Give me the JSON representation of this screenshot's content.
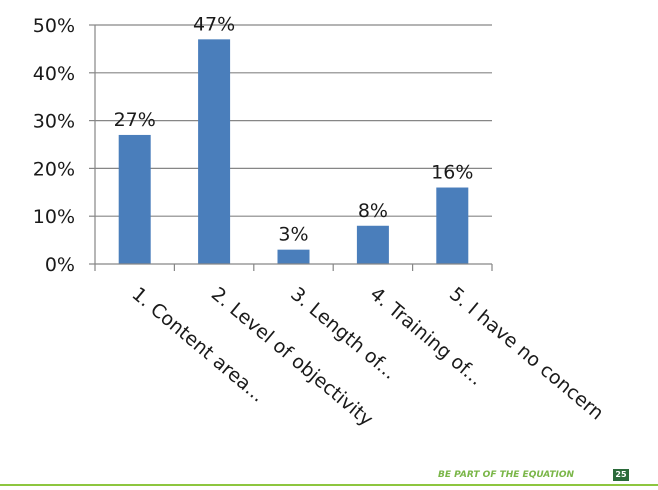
{
  "chart_data": {
    "type": "bar",
    "categories": [
      "1. Content area...",
      "2. Level of objectivity",
      "3. Length of...",
      "4. Training of...",
      "5. I have no concern"
    ],
    "values": [
      27,
      47,
      3,
      8,
      16
    ],
    "data_labels": [
      "27%",
      "47%",
      "3%",
      "8%",
      "16%"
    ],
    "ylim": [
      0,
      50
    ],
    "yticks": [
      0,
      10,
      20,
      30,
      40,
      50
    ],
    "ytick_labels": [
      "0%",
      "10%",
      "20%",
      "30%",
      "40%",
      "50%"
    ],
    "grid": true,
    "bar_color": "#4a7ebb",
    "title": "",
    "xlabel": "",
    "ylabel": ""
  },
  "footer": {
    "text": "BE PART OF THE EQUATION",
    "page_number": "25",
    "accent_color": "#8dc63f"
  }
}
